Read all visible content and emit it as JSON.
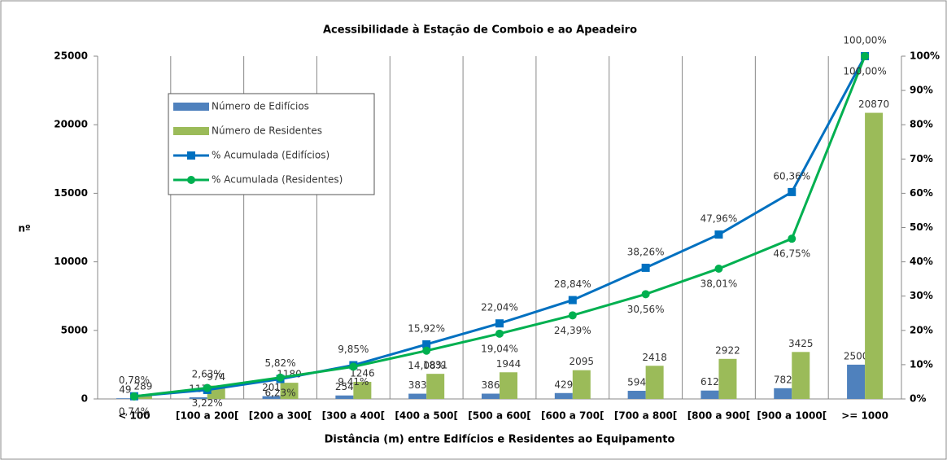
{
  "chart_data": {
    "type": "combo",
    "title": "Acessibilidade à Estação de Comboio e ao Apeadeiro",
    "x_label": "Distância (m) entre Edifícios e Residentes ao Equipamento",
    "y_label": "nº",
    "categories": [
      "< 100",
      "[100 a 200[",
      "[200 a 300[",
      "[300 a 400[",
      "[400 a 500[",
      "[500 a 600[",
      "[600 a 700[",
      "[700 a 800[",
      "[800 a 900[",
      "[900 a 1000[",
      ">= 1000"
    ],
    "series": [
      {
        "name": "Número de Edifícios",
        "type": "bar",
        "color": "#4f81bd",
        "values": [
          49,
          117,
          201,
          254,
          383,
          386,
          429,
          594,
          612,
          782,
          2500
        ]
      },
      {
        "name": "Número de Residentes",
        "type": "bar",
        "color": "#9bbb59",
        "values": [
          289,
          974,
          1180,
          1246,
          1831,
          1944,
          2095,
          2418,
          2922,
          3425,
          20870
        ]
      },
      {
        "name": "% Acumulada (Edifícios)",
        "type": "line",
        "axis": "y2",
        "marker": "square",
        "color": "#0070c0",
        "values": [
          0.78,
          2.63,
          5.82,
          9.85,
          15.92,
          22.04,
          28.84,
          38.26,
          47.96,
          60.36,
          100.0
        ],
        "value_labels": [
          "0,78%",
          "2,63%",
          "5,82%",
          "9,85%",
          "15,92%",
          "22,04%",
          "28,84%",
          "38,26%",
          "47,96%",
          "60,36%",
          "100,00%"
        ]
      },
      {
        "name": "% Acumulada (Residentes)",
        "type": "line",
        "axis": "y2",
        "marker": "circle",
        "color": "#00b050",
        "values": [
          0.74,
          3.22,
          6.23,
          9.41,
          14.08,
          19.04,
          24.39,
          30.56,
          38.01,
          46.75,
          100.0
        ],
        "value_labels": [
          "0,74%",
          "3,22%",
          "6,23%",
          "9,41%",
          "14,08%",
          "19,04%",
          "24,39%",
          "30,56%",
          "38,01%",
          "46,75%",
          "100,00%"
        ]
      }
    ],
    "ylim": [
      0,
      25000
    ],
    "yticks": [
      0,
      5000,
      10000,
      15000,
      20000,
      25000
    ],
    "y2lim": [
      0,
      100
    ],
    "y2ticks": [
      {
        "value": 0,
        "label": "0%"
      },
      {
        "value": 10,
        "label": "10%"
      },
      {
        "value": 20,
        "label": "20%"
      },
      {
        "value": 30,
        "label": "30%"
      },
      {
        "value": 40,
        "label": "40%"
      },
      {
        "value": 50,
        "label": "50%"
      },
      {
        "value": 60,
        "label": "60%"
      },
      {
        "value": 70,
        "label": "70%"
      },
      {
        "value": 80,
        "label": "80%"
      },
      {
        "value": 90,
        "label": "90%"
      },
      {
        "value": 100,
        "label": "100%"
      }
    ],
    "grid_x": true,
    "legend": "upper left"
  }
}
